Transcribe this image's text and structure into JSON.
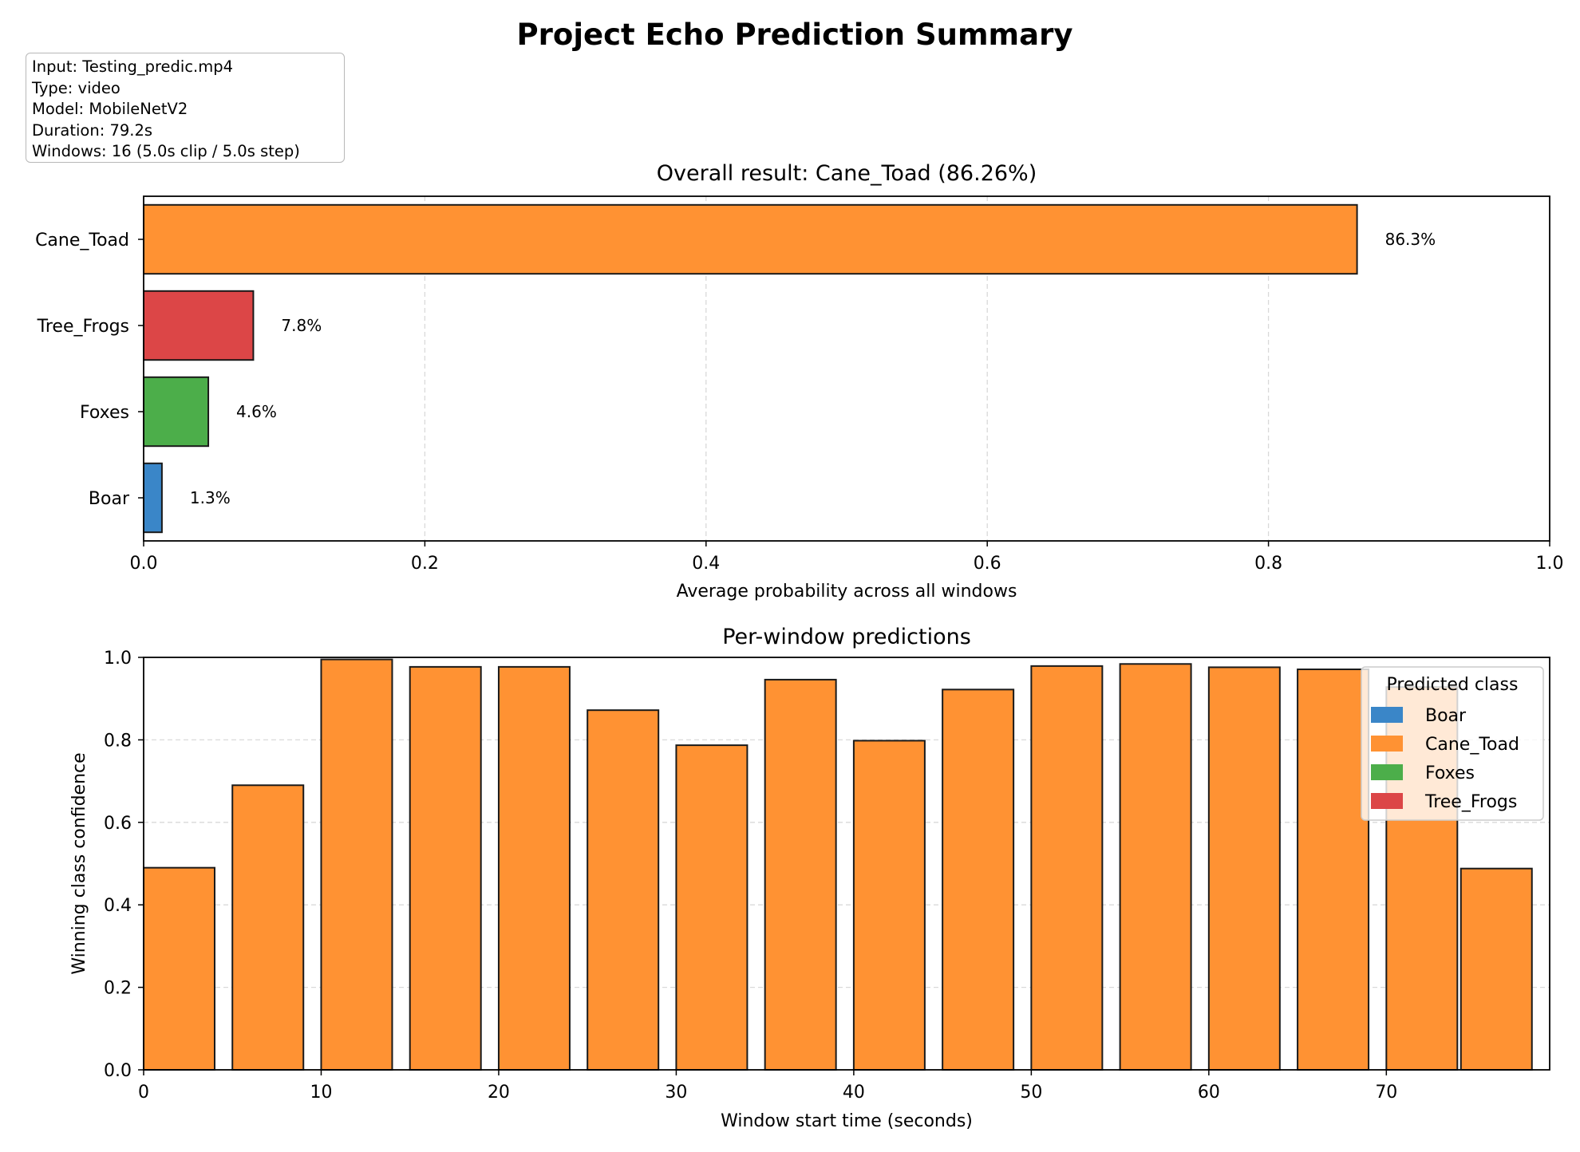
{
  "figure": {
    "title": "Project Echo Prediction Summary",
    "info_lines": [
      "Input: Testing_predic.mp4",
      "Type: video",
      "Model: MobileNetV2",
      "Duration: 79.2s",
      "Windows: 16 (5.0s clip / 5.0s step)"
    ]
  },
  "colors": {
    "Boar": "#3a86c8",
    "Cane_Toad": "#ff9233",
    "Foxes": "#4cae4a",
    "Tree_Frogs": "#dc4647",
    "edge": "#1a1a1a",
    "grid": "#d9d9d9"
  },
  "chart_data": [
    {
      "type": "bar",
      "orientation": "horizontal",
      "title": "Overall result: Cane_Toad (86.26%)",
      "xlabel": "Average probability across all windows",
      "ylabel": "",
      "categories": [
        "Boar",
        "Foxes",
        "Tree_Frogs",
        "Cane_Toad"
      ],
      "values": [
        0.013,
        0.046,
        0.078,
        0.863
      ],
      "value_labels": [
        "1.3%",
        "4.6%",
        "7.8%",
        "86.3%"
      ],
      "xlim": [
        0.0,
        1.0
      ],
      "xticks": [
        0.0,
        0.2,
        0.4,
        0.6,
        0.8,
        1.0
      ],
      "xtick_labels": [
        "0.0",
        "0.2",
        "0.4",
        "0.6",
        "0.8",
        "1.0"
      ],
      "grid": "x, dashed"
    },
    {
      "type": "bar",
      "title": "Per-window predictions",
      "xlabel": "Window start time (seconds)",
      "ylabel": "Winning class confidence",
      "x": [
        0,
        5,
        10,
        15,
        20,
        25,
        30,
        35,
        40,
        45,
        50,
        55,
        60,
        65,
        70,
        74.2
      ],
      "bar_width": 4,
      "values": [
        0.49,
        0.69,
        0.995,
        0.977,
        0.977,
        0.872,
        0.787,
        0.946,
        0.798,
        0.922,
        0.979,
        0.984,
        0.976,
        0.971,
        0.928,
        0.488
      ],
      "predicted_class": [
        "Cane_Toad",
        "Cane_Toad",
        "Cane_Toad",
        "Cane_Toad",
        "Cane_Toad",
        "Cane_Toad",
        "Cane_Toad",
        "Cane_Toad",
        "Cane_Toad",
        "Cane_Toad",
        "Cane_Toad",
        "Cane_Toad",
        "Cane_Toad",
        "Cane_Toad",
        "Cane_Toad",
        "Cane_Toad"
      ],
      "xlim": [
        0,
        79.2
      ],
      "ylim": [
        0.0,
        1.0
      ],
      "xticks": [
        0,
        10,
        20,
        30,
        40,
        50,
        60,
        70
      ],
      "yticks": [
        0.0,
        0.2,
        0.4,
        0.6,
        0.8,
        1.0
      ],
      "ytick_labels": [
        "0.0",
        "0.2",
        "0.4",
        "0.6",
        "0.8",
        "1.0"
      ],
      "grid": "y, dashed",
      "legend": {
        "title": "Predicted class",
        "entries": [
          "Boar",
          "Cane_Toad",
          "Foxes",
          "Tree_Frogs"
        ],
        "placement": "top-right"
      }
    }
  ]
}
